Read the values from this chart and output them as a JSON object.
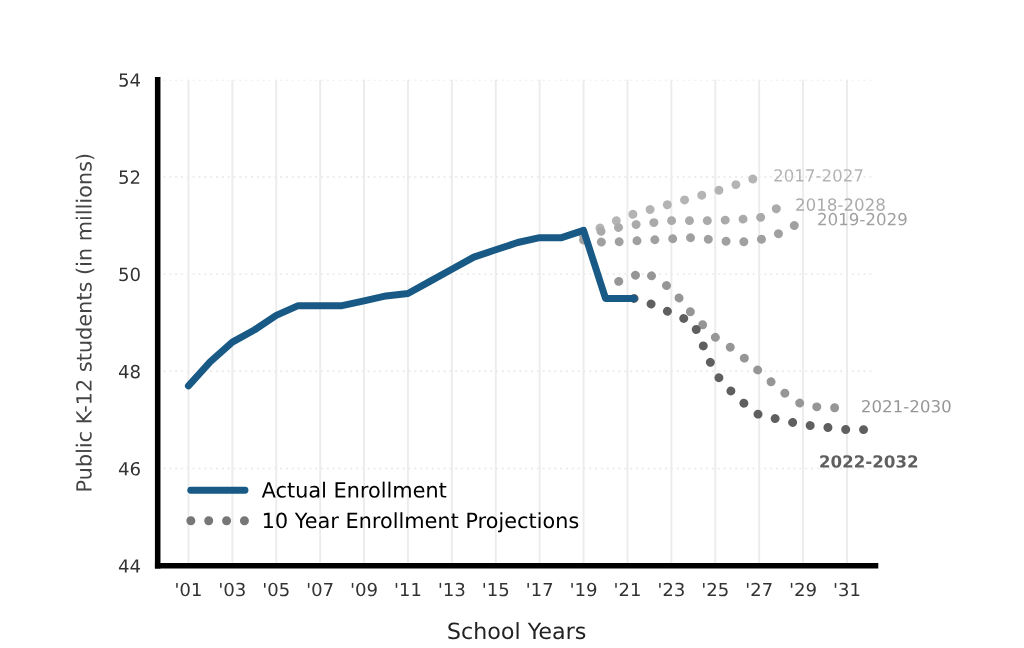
{
  "chart_data": {
    "type": "line",
    "xlabel": "School Years",
    "ylabel": "Public K-12 students (in millions)",
    "xlim": [
      1999.6,
      2032.3
    ],
    "ylim": [
      44,
      54
    ],
    "xticks": [
      {
        "value": 2001,
        "label": "'01"
      },
      {
        "value": 2003,
        "label": "'03"
      },
      {
        "value": 2005,
        "label": "'05"
      },
      {
        "value": 2007,
        "label": "'07"
      },
      {
        "value": 2009,
        "label": "'09"
      },
      {
        "value": 2011,
        "label": "'11"
      },
      {
        "value": 2013,
        "label": "'13"
      },
      {
        "value": 2015,
        "label": "'15"
      },
      {
        "value": 2017,
        "label": "'17"
      },
      {
        "value": 2019,
        "label": "'19"
      },
      {
        "value": 2021,
        "label": "'21"
      },
      {
        "value": 2023,
        "label": "'23"
      },
      {
        "value": 2025,
        "label": "'25"
      },
      {
        "value": 2027,
        "label": "'27"
      },
      {
        "value": 2029,
        "label": "'29"
      },
      {
        "value": 2031,
        "label": "'31"
      }
    ],
    "yticks": [
      44,
      46,
      48,
      50,
      52,
      54
    ],
    "grid": true,
    "legend": "bottom left",
    "annotations": [
      "10 Year Enrollment Projections"
    ],
    "series": [
      {
        "name": "2017-2027",
        "color": "#b4b4b4",
        "line_style": "dotted",
        "x": [
          2019,
          2021,
          2023,
          2025,
          2027
        ],
        "values": [
          50.8,
          51.2,
          51.45,
          51.7,
          52.0
        ]
      },
      {
        "name": "2018-2028",
        "color": "#aaaaaa",
        "line_style": "dotted",
        "x": [
          2019,
          2021,
          2023,
          2025,
          2027,
          2028
        ],
        "values": [
          50.8,
          51.0,
          51.1,
          51.1,
          51.15,
          51.4
        ]
      },
      {
        "name": "2019-2029",
        "color": "#a0a0a0",
        "line_style": "dotted",
        "x": [
          2019,
          2020,
          2022,
          2024,
          2026,
          2027,
          2028,
          2029
        ],
        "values": [
          50.7,
          50.65,
          50.7,
          50.75,
          50.65,
          50.7,
          50.85,
          51.1
        ]
      },
      {
        "name": "2021-2030",
        "color": "#969696",
        "line_style": "dotted",
        "x": [
          2020.6,
          2021.8,
          2023,
          2024,
          2025,
          2026,
          2027,
          2028,
          2029,
          2030,
          2031
        ],
        "values": [
          49.85,
          50.05,
          49.7,
          49.15,
          48.7,
          48.4,
          48.0,
          47.6,
          47.3,
          47.25,
          47.25
        ]
      },
      {
        "name": "2022-2032",
        "color": "#5f5f5f",
        "line_style": "dotted",
        "x": [
          2021.3,
          2022,
          2023,
          2024,
          2025,
          2026,
          2027,
          2028,
          2029,
          2030,
          2031,
          2032
        ],
        "values": [
          49.5,
          49.4,
          49.2,
          49.0,
          47.95,
          47.45,
          47.1,
          47.0,
          46.9,
          46.85,
          46.8,
          46.8
        ]
      },
      {
        "name": "Actual Enrollment",
        "color": "#185a85",
        "line_style": "solid",
        "x": [
          2001,
          2002,
          2003,
          2004,
          2005,
          2006,
          2007,
          2008,
          2009,
          2010,
          2011,
          2012,
          2013,
          2014,
          2015,
          2016,
          2017,
          2018,
          2019,
          2020,
          2021.3
        ],
        "values": [
          47.7,
          48.2,
          48.6,
          48.85,
          49.15,
          49.35,
          49.35,
          49.35,
          49.45,
          49.55,
          49.6,
          49.85,
          50.1,
          50.35,
          50.5,
          50.65,
          50.75,
          50.75,
          50.9,
          49.5,
          49.5
        ]
      }
    ]
  }
}
